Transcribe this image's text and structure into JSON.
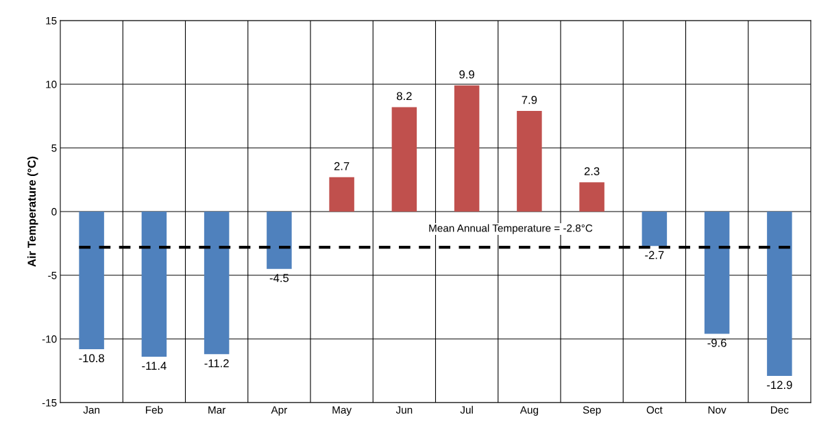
{
  "chart_data": {
    "type": "bar",
    "ylabel": "Air Temperature (°C)",
    "categories": [
      "Jan",
      "Feb",
      "Mar",
      "Apr",
      "May",
      "Jun",
      "Jul",
      "Aug",
      "Sep",
      "Oct",
      "Nov",
      "Dec"
    ],
    "values": [
      -10.8,
      -11.4,
      -11.2,
      -4.5,
      2.7,
      8.2,
      9.9,
      7.9,
      2.3,
      -2.7,
      -9.6,
      -12.9
    ],
    "colors": [
      "#4f81bd",
      "#4f81bd",
      "#4f81bd",
      "#4f81bd",
      "#c0504d",
      "#c0504d",
      "#c0504d",
      "#c0504d",
      "#c0504d",
      "#4f81bd",
      "#4f81bd",
      "#4f81bd"
    ],
    "ylim": [
      -15,
      15
    ],
    "yticks": [
      -15,
      -10,
      -5,
      0,
      5,
      10,
      15
    ],
    "grid": true,
    "data_labels": true,
    "ref_lines": [
      {
        "axis": "y",
        "value": -2.8,
        "label": "Mean Annual Temperature = -2.8°C",
        "color": "#000000",
        "line_style": "dashed"
      }
    ]
  }
}
